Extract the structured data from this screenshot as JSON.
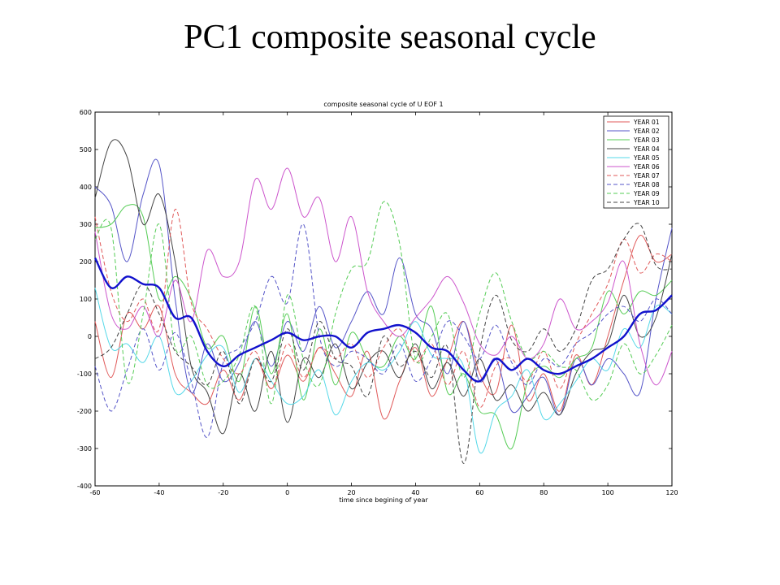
{
  "slide_title": "PC1 composite seasonal cycle",
  "chart_data": {
    "type": "line",
    "title": "composite seasonal cycle of U EOF 1",
    "xlabel": "time since begining of year",
    "ylabel": "",
    "xlim": [
      -60,
      120
    ],
    "ylim": [
      -400,
      600
    ],
    "x_ticks": [
      -60,
      -40,
      -20,
      0,
      20,
      40,
      60,
      80,
      100,
      120
    ],
    "y_ticks": [
      -400,
      -300,
      -200,
      -100,
      0,
      100,
      200,
      300,
      400,
      500,
      600
    ],
    "grid": false,
    "legend_position": "top-right",
    "x": [
      -60,
      -55,
      -50,
      -45,
      -40,
      -35,
      -30,
      -25,
      -20,
      -15,
      -10,
      -5,
      0,
      5,
      10,
      15,
      20,
      25,
      30,
      35,
      40,
      45,
      50,
      55,
      60,
      65,
      70,
      75,
      80,
      85,
      90,
      95,
      100,
      105,
      110,
      115,
      120
    ],
    "series": [
      {
        "name": "YEAR 01",
        "color": "#e05a5a",
        "dash": "solid",
        "values": [
          40,
          -110,
          60,
          20,
          80,
          -100,
          -150,
          -180,
          -90,
          -170,
          -60,
          -140,
          -50,
          -120,
          -30,
          -100,
          -160,
          -40,
          -220,
          -120,
          -30,
          -160,
          -60,
          40,
          -100,
          -150,
          30,
          -170,
          -100,
          -200,
          -50,
          -130,
          0,
          150,
          270,
          200,
          220
        ]
      },
      {
        "name": "YEAR 02",
        "color": "#5555c8",
        "dash": "solid",
        "values": [
          400,
          350,
          200,
          380,
          460,
          100,
          -150,
          -20,
          -120,
          -70,
          40,
          -80,
          40,
          -40,
          80,
          -30,
          40,
          120,
          60,
          210,
          60,
          20,
          -100,
          40,
          -120,
          -60,
          -200,
          -160,
          -110,
          -210,
          -60,
          -130,
          -60,
          -100,
          -150,
          100,
          290
        ]
      },
      {
        "name": "YEAR 03",
        "color": "#55cc55",
        "dash": "solid",
        "values": [
          290,
          300,
          350,
          320,
          100,
          160,
          100,
          -30,
          0,
          -120,
          80,
          -100,
          60,
          -170,
          20,
          -130,
          10,
          -60,
          -80,
          0,
          -60,
          80,
          -150,
          -100,
          -200,
          -210,
          -300,
          -120,
          -80,
          -110,
          -60,
          -30,
          120,
          60,
          120,
          110,
          150
        ]
      },
      {
        "name": "YEAR 04",
        "color": "#444444",
        "dash": "solid",
        "values": [
          370,
          520,
          480,
          300,
          380,
          200,
          -80,
          -150,
          -260,
          -100,
          -200,
          -40,
          -230,
          -60,
          -110,
          -20,
          -140,
          -70,
          -40,
          -110,
          -20,
          -140,
          -70,
          -160,
          -60,
          -170,
          -130,
          -200,
          -150,
          -210,
          -100,
          -40,
          -20,
          110,
          0,
          50,
          220
        ]
      },
      {
        "name": "YEAR 05",
        "color": "#55d8e8",
        "dash": "solid",
        "values": [
          130,
          -30,
          -20,
          -70,
          0,
          -150,
          -120,
          -50,
          -30,
          -150,
          -60,
          -120,
          -180,
          -160,
          -90,
          -210,
          -120,
          -70,
          -90,
          -40,
          40,
          -50,
          -60,
          -80,
          -310,
          -200,
          -160,
          -90,
          -220,
          -180,
          -120,
          -60,
          -90,
          20,
          -30,
          80,
          60
        ]
      },
      {
        "name": "YEAR 06",
        "color": "#cc55cc",
        "dash": "solid",
        "values": [
          280,
          60,
          20,
          80,
          0,
          150,
          40,
          230,
          160,
          200,
          420,
          340,
          450,
          320,
          370,
          200,
          320,
          120,
          40,
          0,
          50,
          100,
          160,
          90,
          -20,
          -50,
          0,
          -60,
          -20,
          100,
          20,
          40,
          90,
          200,
          -20,
          -130,
          -40
        ]
      },
      {
        "name": "YEAR 07",
        "color": "#e05a5a",
        "dash": "dashed",
        "values": [
          320,
          120,
          40,
          100,
          20,
          340,
          90,
          20,
          -60,
          -100,
          -40,
          -140,
          -20,
          -110,
          -30,
          -60,
          -20,
          -110,
          -30,
          20,
          -70,
          -20,
          -130,
          -40,
          -190,
          -80,
          -60,
          -120,
          -40,
          -140,
          -20,
          60,
          140,
          260,
          170,
          220,
          200
        ]
      },
      {
        "name": "YEAR 08",
        "color": "#5555c8",
        "dash": "dashed",
        "values": [
          -80,
          -200,
          -90,
          20,
          -90,
          10,
          -120,
          -270,
          -70,
          -30,
          40,
          160,
          90,
          300,
          0,
          -80,
          -40,
          -60,
          -100,
          -20,
          -120,
          -60,
          40,
          0,
          -60,
          30,
          -70,
          -130,
          -60,
          -80,
          -20,
          10,
          60,
          80,
          40,
          100,
          60
        ]
      },
      {
        "name": "YEAR 09",
        "color": "#55cc55",
        "dash": "dashed",
        "values": [
          260,
          290,
          -120,
          60,
          300,
          -30,
          0,
          -130,
          -120,
          -50,
          80,
          -180,
          110,
          -60,
          -130,
          60,
          180,
          200,
          360,
          250,
          -60,
          0,
          60,
          -110,
          60,
          170,
          40,
          -60,
          -40,
          -80,
          -90,
          -170,
          -130,
          -20,
          -100,
          -50,
          30
        ]
      },
      {
        "name": "YEAR 10",
        "color": "#444444",
        "dash": "dashed",
        "values": [
          -60,
          -30,
          60,
          140,
          60,
          -40,
          -80,
          -130,
          -40,
          -180,
          -60,
          -120,
          20,
          -90,
          40,
          -60,
          -80,
          -160,
          0,
          -80,
          -40,
          -110,
          -30,
          -340,
          -40,
          110,
          -10,
          -40,
          20,
          -40,
          20,
          150,
          180,
          260,
          300,
          190,
          180
        ]
      },
      {
        "name": "",
        "color": "#1111cc",
        "dash": "solid",
        "width": 2.4,
        "values": [
          210,
          130,
          160,
          140,
          130,
          50,
          50,
          -40,
          -80,
          -50,
          -30,
          -10,
          10,
          -10,
          0,
          0,
          -30,
          10,
          20,
          30,
          10,
          -30,
          -40,
          -90,
          -120,
          -60,
          -90,
          -60,
          -90,
          -100,
          -80,
          -60,
          -30,
          0,
          60,
          70,
          110
        ]
      }
    ]
  }
}
